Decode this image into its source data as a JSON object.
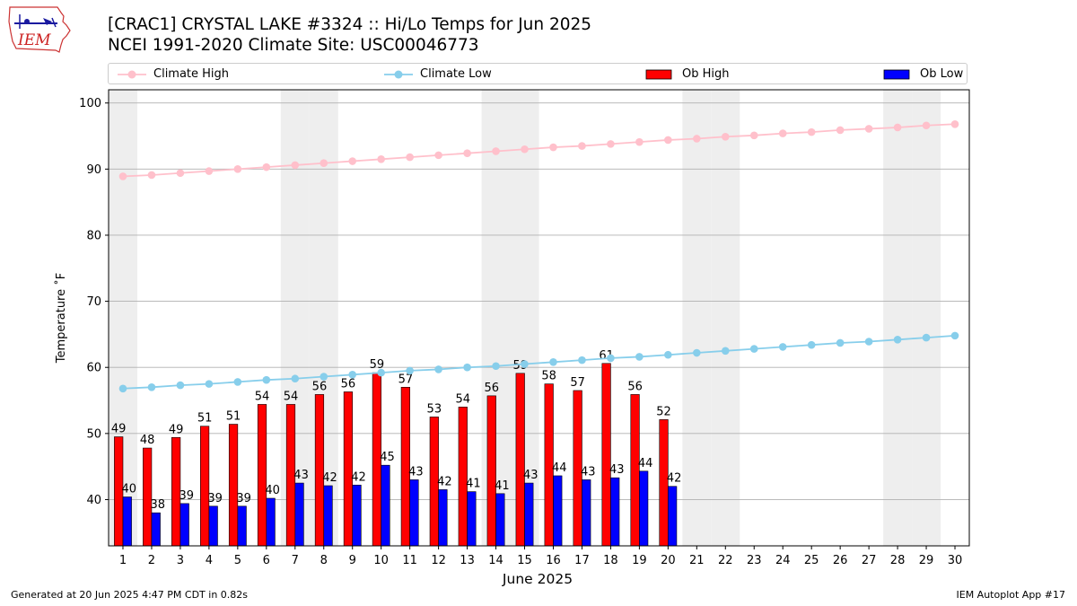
{
  "logo": {
    "text": "IEM"
  },
  "title_line1": "[CRAC1] CRYSTAL LAKE #3324 :: Hi/Lo Temps for Jun 2025",
  "title_line2": "NCEI 1991-2020 Climate Site: USC00046773",
  "footer": {
    "left": "Generated at 20 Jun 2025 4:47 PM CDT in 0.82s",
    "right": "IEM Autoplot App #17"
  },
  "colors": {
    "climate_high": "#ffc0cb",
    "climate_low": "#87ceeb",
    "ob_high": "#ff0000",
    "ob_low": "#0000ff",
    "weekend_band": "#eeeeee",
    "grid": "#b0b0b0"
  },
  "chart_data": {
    "type": "bar",
    "xlabel": "June 2025",
    "ylabel": "Temperature $^\\circ$F",
    "ylabel_display": "Temperature ˚F",
    "xlim": [
      0.5,
      30.5
    ],
    "ylim": [
      33,
      102
    ],
    "yticks": [
      40,
      50,
      60,
      70,
      80,
      90,
      100
    ],
    "grid": "horizontal",
    "legend": "top (above plot, 4 columns)",
    "days": [
      1,
      2,
      3,
      4,
      5,
      6,
      7,
      8,
      9,
      10,
      11,
      12,
      13,
      14,
      15,
      16,
      17,
      18,
      19,
      20,
      21,
      22,
      23,
      24,
      25,
      26,
      27,
      28,
      29,
      30
    ],
    "weekend_days": [
      1,
      7,
      8,
      14,
      15,
      21,
      22,
      28,
      29
    ],
    "series": [
      {
        "name": "Climate High",
        "type": "line",
        "values": [
          88.9,
          89.1,
          89.4,
          89.7,
          90.0,
          90.3,
          90.6,
          90.9,
          91.2,
          91.5,
          91.8,
          92.1,
          92.4,
          92.7,
          93.0,
          93.3,
          93.5,
          93.8,
          94.1,
          94.4,
          94.6,
          94.9,
          95.1,
          95.4,
          95.6,
          95.9,
          96.1,
          96.3,
          96.6,
          96.8
        ]
      },
      {
        "name": "Climate Low",
        "type": "line",
        "values": [
          56.8,
          57.0,
          57.3,
          57.5,
          57.8,
          58.1,
          58.3,
          58.6,
          58.9,
          59.2,
          59.5,
          59.7,
          60.0,
          60.2,
          60.5,
          60.8,
          61.1,
          61.4,
          61.6,
          61.9,
          62.2,
          62.5,
          62.8,
          63.1,
          63.4,
          63.7,
          63.9,
          64.2,
          64.5,
          64.8
        ]
      },
      {
        "name": "Ob High",
        "type": "bar",
        "values": [
          49.5,
          47.8,
          49.4,
          51.1,
          51.4,
          54.4,
          54.4,
          55.9,
          56.3,
          59.2,
          57.0,
          52.5,
          54.0,
          55.7,
          59.1,
          57.5,
          56.5,
          60.6,
          55.9,
          52.1
        ],
        "labels": [
          "49",
          "48",
          "49",
          "51",
          "51",
          "54",
          "54",
          "56",
          "56",
          "59",
          "57",
          "53",
          "54",
          "56",
          "59",
          "58",
          "57",
          "61",
          "56",
          "52"
        ]
      },
      {
        "name": "Ob Low",
        "type": "bar",
        "values": [
          40.4,
          38.0,
          39.4,
          39.0,
          39.0,
          40.2,
          42.5,
          42.1,
          42.2,
          45.2,
          43.0,
          41.5,
          41.2,
          40.9,
          42.5,
          43.6,
          43.0,
          43.3,
          44.3,
          42.0
        ],
        "labels": [
          "40",
          "38",
          "39",
          "39",
          "39",
          "40",
          "43",
          "42",
          "42",
          "45",
          "43",
          "42",
          "41",
          "41",
          "43",
          "44",
          "43",
          "43",
          "44",
          "42"
        ]
      }
    ]
  }
}
